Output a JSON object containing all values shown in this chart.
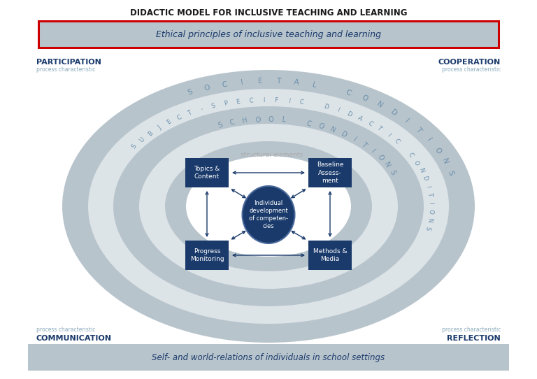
{
  "title": "DIDACTIC MODEL FOR INCLUSIVE TEACHING AND LEARNING",
  "title_color": "#1a1a1a",
  "bg_color": "#ffffff",
  "outer_bg": "#c5cdd5",
  "ethical_box_text": "Ethical principles of inclusive teaching and learning",
  "ethical_box_bg": "#b8c4cc",
  "ethical_box_border": "#cc0000",
  "bottom_text": "Self- and world-relations of individuals in school settings",
  "bottom_bg": "#b8c4cc",
  "bottom_text_color": "#1a3a6b",
  "process_color": "#1a3a6b",
  "process_label_color": "#8aaabb",
  "ring_color": "#b8c4cc",
  "ring_white": "#dde4e8",
  "ring_label_color": "#6a8fab",
  "box_bg": "#1a3a6b",
  "center_circle_bg": "#1a3a6b",
  "center_circle_border": "#3a5a8b",
  "arrow_color": "#1a3a6b",
  "structural_label_color": "#aaaaaa",
  "participation_label": "PARTICIPATION",
  "cooperation_label": "COOPERATION",
  "communication_label": "COMMUNICATION",
  "reflection_label": "REFLECTION",
  "process_char_label": "process characteristic",
  "structural_elements_label": "structural elements",
  "center_text": "Individual\ndevelopment\nof competen-\ncies",
  "box_labels": [
    "Topics &\nContent",
    "Baseline\nAssess-\nment",
    "Progress\nMonitoring",
    "Methods &\nMedia"
  ],
  "ring_label_1": "SOCIETAL CONDITIONS",
  "ring_label_2": "SUBJECT-SPECIFIC DIDACTIC CONDITIONS",
  "ring_label_3": "SCHOOL CONDITIONS"
}
